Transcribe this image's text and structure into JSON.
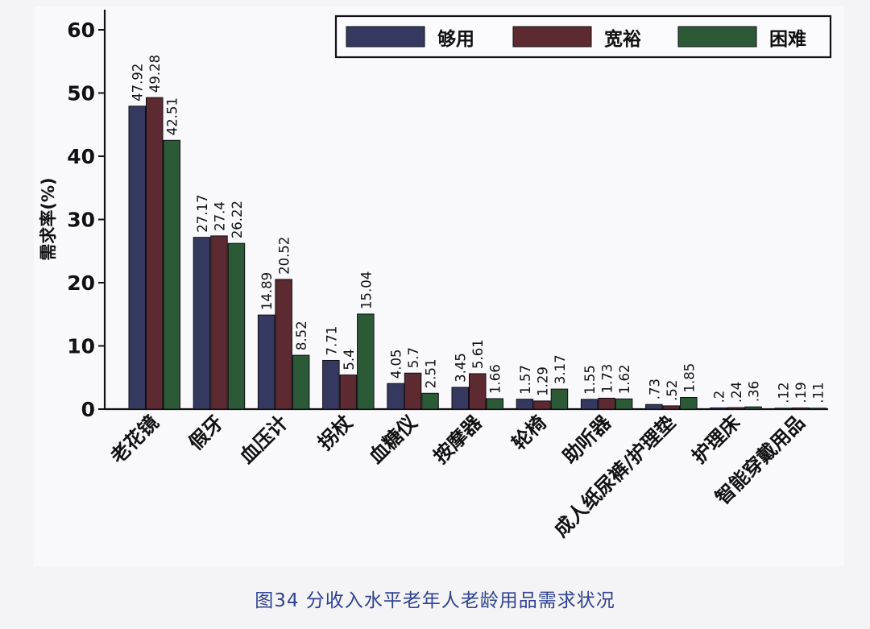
{
  "caption": "图34 分收入水平老年人老龄用品需求状况",
  "chart_data": {
    "type": "bar",
    "title": "",
    "xlabel": "",
    "ylabel": "需求率(%)",
    "ylim": [
      0,
      60
    ],
    "yticks": [
      0,
      10,
      20,
      30,
      40,
      50,
      60
    ],
    "grid": false,
    "legend_position": "top-right",
    "categories": [
      "老花镜",
      "假牙",
      "血压计",
      "拐杖",
      "血糖仪",
      "按摩器",
      "轮椅",
      "助听器",
      "成人纸尿裤/护理垫",
      "护理床",
      "智能穿戴用品"
    ],
    "series": [
      {
        "name": "够用",
        "color": "#36395f",
        "values": [
          47.92,
          27.17,
          14.89,
          7.71,
          4.05,
          3.45,
          1.57,
          1.55,
          0.73,
          0.2,
          0.12
        ],
        "labels": [
          "47.92",
          "27.17",
          "14.89",
          "7.71",
          "4.05",
          "3.45",
          "1.57",
          "1.55",
          ".73",
          ".2",
          ".12"
        ]
      },
      {
        "name": "宽裕",
        "color": "#5c2a30",
        "values": [
          49.28,
          27.4,
          20.52,
          5.4,
          5.7,
          5.61,
          1.29,
          1.73,
          0.52,
          0.24,
          0.19
        ],
        "labels": [
          "49.28",
          "27.4",
          "20.52",
          "5.4",
          "5.7",
          "5.61",
          "1.29",
          "1.73",
          ".52",
          ".24",
          ".19"
        ]
      },
      {
        "name": "困难",
        "color": "#2c5a36",
        "values": [
          42.51,
          26.22,
          8.52,
          15.04,
          2.51,
          1.66,
          3.17,
          1.62,
          1.85,
          0.36,
          0.11
        ],
        "labels": [
          "42.51",
          "26.22",
          "8.52",
          "15.04",
          "2.51",
          "1.66",
          "3.17",
          "1.62",
          "1.85",
          ".36",
          ".11"
        ]
      }
    ]
  }
}
